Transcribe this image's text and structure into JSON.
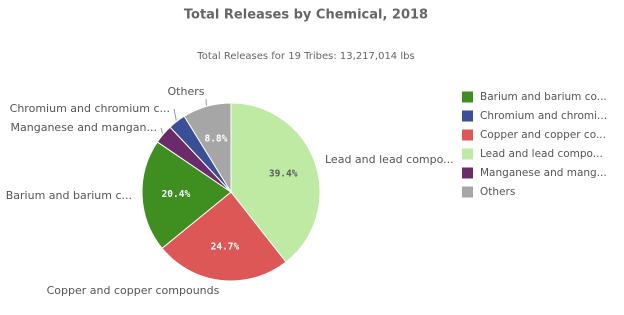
{
  "chart_data": {
    "type": "pie",
    "title": "Total Releases by Chemical, 2018",
    "subtitle": "Total Releases for 19 Tribes: 13,217,014 lbs",
    "categories": [
      "Lead and lead compo...",
      "Copper and copper compounds",
      "Barium and barium c...",
      "Manganese and mangan...",
      "Chromium and chromium c...",
      "Others"
    ],
    "values": [
      39.4,
      24.7,
      20.4,
      3.5,
      3.2,
      8.8
    ],
    "value_labels": [
      "39.4%",
      "24.7%",
      "20.4%",
      null,
      null,
      "8.8%"
    ],
    "colors": [
      "#bfeaa3",
      "#dd5757",
      "#3e8f1f",
      "#6b2a6a",
      "#3a4f97",
      "#a6a6a6"
    ],
    "legend": [
      {
        "label": "Barium and barium co...",
        "color": "#3e8f1f"
      },
      {
        "label": "Chromium and chromi...",
        "color": "#3a4f97"
      },
      {
        "label": "Copper and copper co...",
        "color": "#dd5757"
      },
      {
        "label": "Lead and lead compo...",
        "color": "#bfeaa3"
      },
      {
        "label": "Manganese and mang...",
        "color": "#6b2a6a"
      },
      {
        "label": "Others",
        "color": "#a6a6a6"
      }
    ]
  }
}
